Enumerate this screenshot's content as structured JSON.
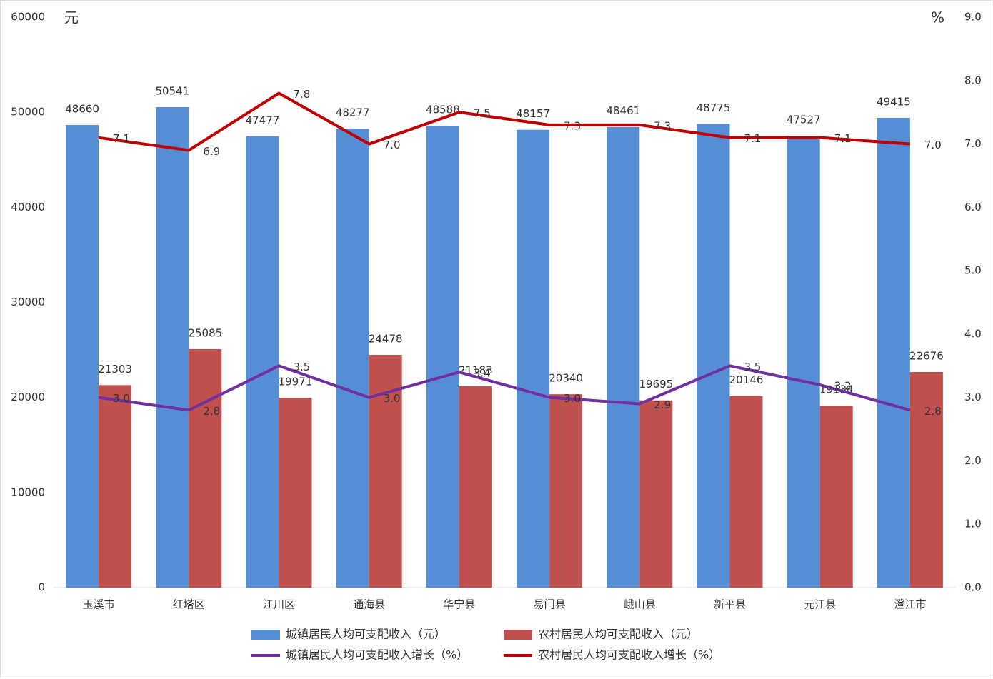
{
  "chart_data": {
    "type": "bar",
    "y_unit": "元",
    "y2_unit": "%",
    "categories": [
      "玉溪市",
      "红塔区",
      "江川区",
      "通海县",
      "华宁县",
      "易门县",
      "峨山县",
      "新平县",
      "元江县",
      "澄江市"
    ],
    "series": [
      {
        "name": "城镇居民人均可支配收入（元）",
        "type": "bar",
        "color": "#558ed5",
        "values": [
          48660,
          50541,
          47477,
          48277,
          48588,
          48157,
          48461,
          48775,
          47527,
          49415
        ]
      },
      {
        "name": "农村居民人均可支配收入（元）",
        "type": "bar",
        "color": "#c0504d",
        "values": [
          21303,
          25085,
          19971,
          24478,
          21183,
          20340,
          19695,
          20146,
          19134,
          22676
        ]
      },
      {
        "name": "城镇居民人均可支配收入增长（%）",
        "type": "line",
        "axis": "y2",
        "color": "#7030a0",
        "values": [
          3.0,
          2.8,
          3.5,
          3.0,
          3.4,
          3.0,
          2.9,
          3.5,
          3.2,
          2.8
        ],
        "value_labels": [
          "3.0",
          "2.8",
          "3.5",
          "3.0",
          "3.4",
          "3.0",
          "2.9",
          "3.5",
          "3.2",
          "2.8"
        ]
      },
      {
        "name": "农村居民人均可支配收入增长（%）",
        "type": "line",
        "axis": "y2",
        "color": "#c00000",
        "values": [
          7.1,
          6.9,
          7.8,
          7.0,
          7.5,
          7.3,
          7.3,
          7.1,
          7.1,
          7.0
        ],
        "value_labels": [
          "7.1",
          "6.9",
          "7.8",
          "7.0",
          "7.5",
          "7.3",
          "7.3",
          "7.1",
          "7.1",
          "7.0"
        ]
      }
    ],
    "ylim": [
      0,
      60000
    ],
    "yticks": [
      0,
      10000,
      20000,
      30000,
      40000,
      50000,
      60000
    ],
    "y2lim": [
      0,
      9
    ],
    "y2ticks": [
      {
        "value": 0,
        "label": "0.0"
      },
      {
        "value": 1,
        "label": "1.0"
      },
      {
        "value": 2,
        "label": "2.0"
      },
      {
        "value": 3,
        "label": "3.0"
      },
      {
        "value": 4,
        "label": "4.0"
      },
      {
        "value": 5,
        "label": "5.0"
      },
      {
        "value": 6,
        "label": "6.0"
      },
      {
        "value": 7,
        "label": "7.0"
      },
      {
        "value": 8,
        "label": "8.0"
      },
      {
        "value": 9,
        "label": "9.0"
      }
    ],
    "grid": false
  }
}
